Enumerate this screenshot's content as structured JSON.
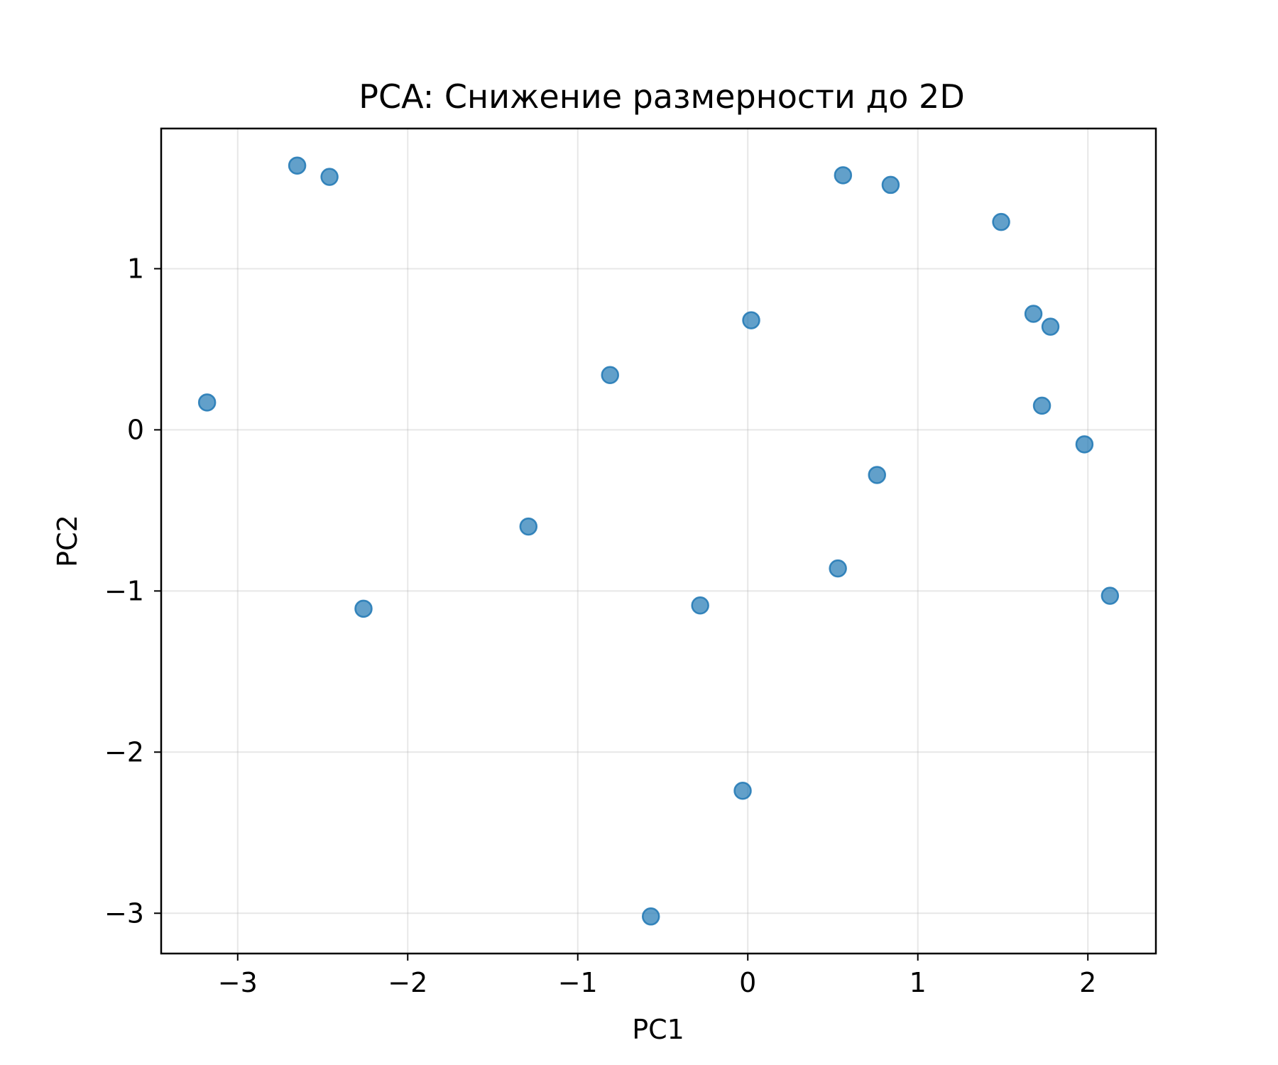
{
  "chart_data": {
    "type": "scatter",
    "title": "PCA: Снижение размерности до 2D",
    "xlabel": "PC1",
    "ylabel": "PC2",
    "xlim": [
      -3.45,
      2.4
    ],
    "ylim": [
      -3.25,
      1.87
    ],
    "xticks": [
      -3,
      -2,
      -1,
      0,
      1,
      2
    ],
    "yticks": [
      -3,
      -2,
      -1,
      0,
      1
    ],
    "xtick_labels": [
      "−3",
      "−2",
      "−1",
      "0",
      "1",
      "2"
    ],
    "ytick_labels": [
      "−3",
      "−2",
      "−1",
      "0",
      "1"
    ],
    "grid": true,
    "marker_color": "#1f77b4",
    "marker_alpha": 0.7,
    "points": [
      {
        "x": -3.18,
        "y": 0.17
      },
      {
        "x": -2.65,
        "y": 1.64
      },
      {
        "x": -2.46,
        "y": 1.57
      },
      {
        "x": -2.26,
        "y": -1.11
      },
      {
        "x": -1.29,
        "y": -0.6
      },
      {
        "x": -0.81,
        "y": 0.34
      },
      {
        "x": -0.57,
        "y": -3.02
      },
      {
        "x": -0.28,
        "y": -1.09
      },
      {
        "x": -0.03,
        "y": -2.24
      },
      {
        "x": 0.02,
        "y": 0.68
      },
      {
        "x": 0.53,
        "y": -0.86
      },
      {
        "x": 0.56,
        "y": 1.58
      },
      {
        "x": 0.76,
        "y": -0.28
      },
      {
        "x": 0.84,
        "y": 1.52
      },
      {
        "x": 1.49,
        "y": 1.29
      },
      {
        "x": 1.68,
        "y": 0.72
      },
      {
        "x": 1.73,
        "y": 0.15
      },
      {
        "x": 1.78,
        "y": 0.64
      },
      {
        "x": 1.98,
        "y": -0.09
      },
      {
        "x": 2.13,
        "y": -1.03
      }
    ]
  }
}
